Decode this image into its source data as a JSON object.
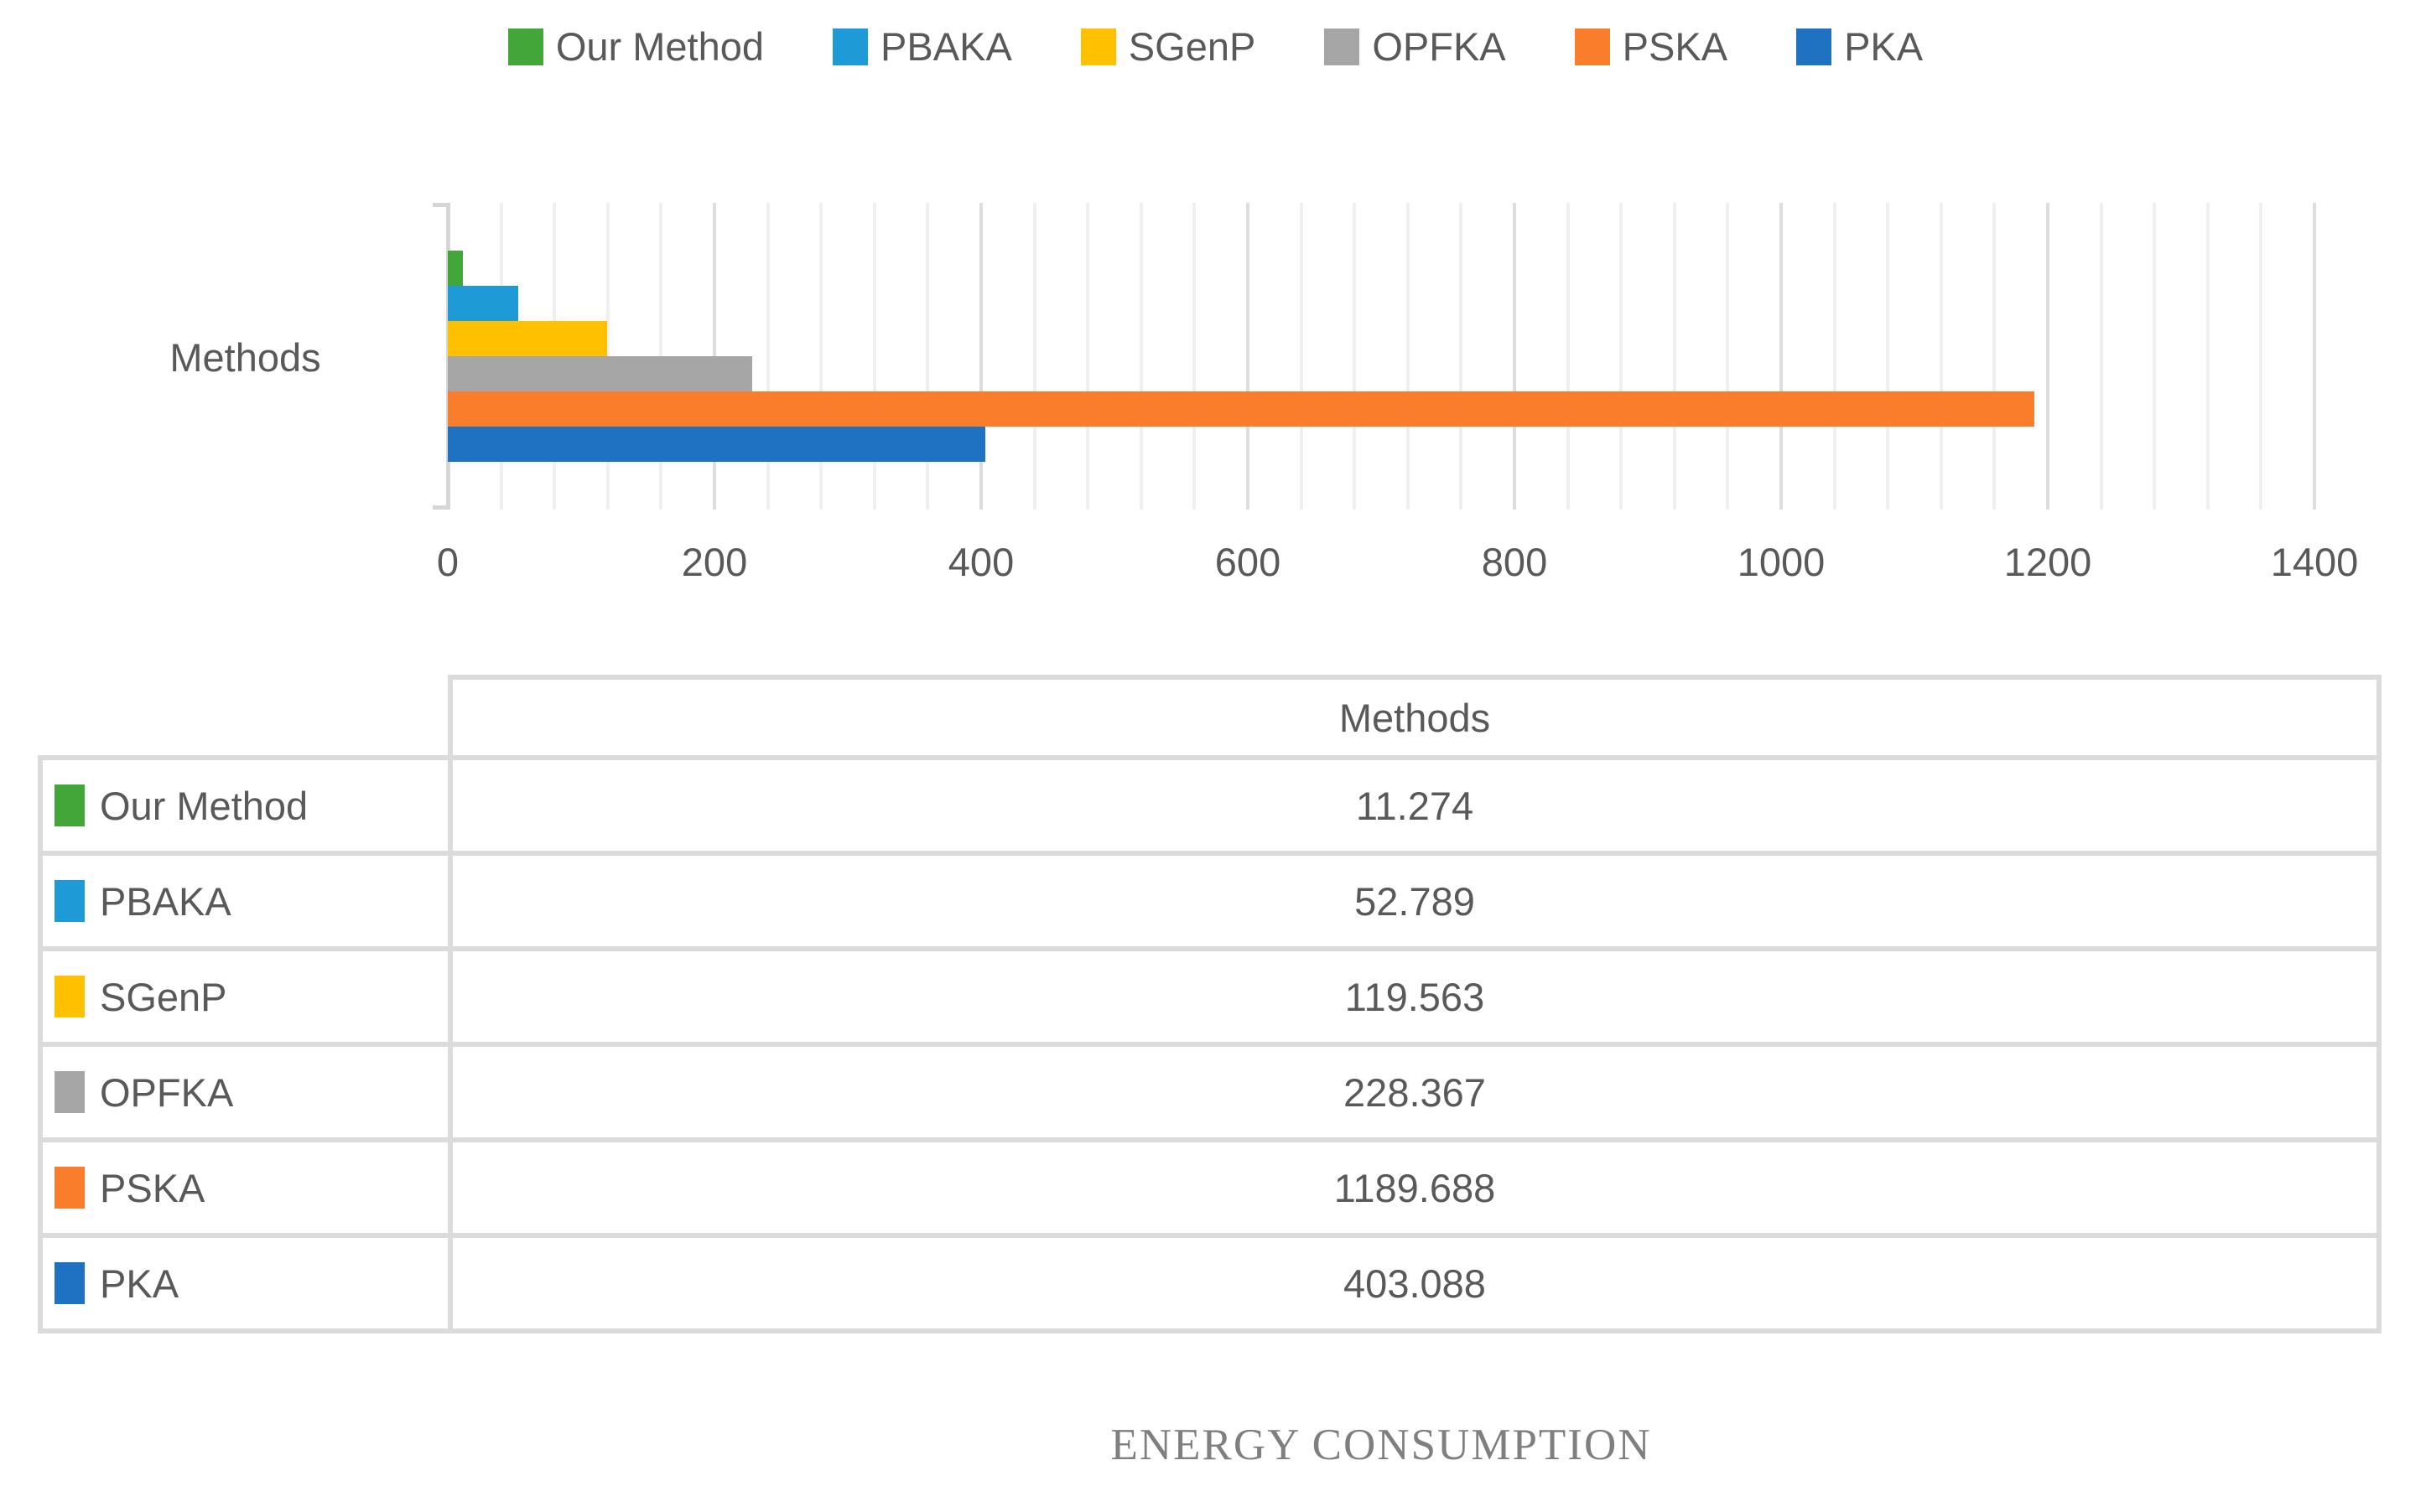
{
  "footer_title": "ENERGY CONSUMPTION",
  "chart_data": {
    "type": "bar",
    "orientation": "horizontal",
    "title": "ENERGY CONSUMPTION",
    "category_axis_label": "Methods",
    "categories": [
      "Methods"
    ],
    "series": [
      {
        "name": "Our Method",
        "value": 11.274,
        "color": "#43a639"
      },
      {
        "name": "PBAKA",
        "value": 52.789,
        "color": "#1e9ad6"
      },
      {
        "name": "SGenP",
        "value": 119.563,
        "color": "#ffc000"
      },
      {
        "name": "OPFKA",
        "value": 228.367,
        "color": "#a6a6a6"
      },
      {
        "name": "PSKA",
        "value": 1189.688,
        "color": "#f97d2b"
      },
      {
        "name": "PKA",
        "value": 403.088,
        "color": "#1f72c2"
      }
    ],
    "xlim": [
      0,
      1400
    ],
    "x_major_ticks": [
      0,
      200,
      400,
      600,
      800,
      1000,
      1200,
      1400
    ],
    "x_minor_unit": 40,
    "grid": "vertical major and minor gridlines",
    "legend_position": "top"
  },
  "table": {
    "header": "Methods",
    "rows": [
      {
        "label": "Our Method",
        "value": "11.274"
      },
      {
        "label": "PBAKA",
        "value": "52.789"
      },
      {
        "label": "SGenP",
        "value": "119.563"
      },
      {
        "label": "OPFKA",
        "value": "228.367"
      },
      {
        "label": "PSKA",
        "value": "1189.688"
      },
      {
        "label": "PKA",
        "value": "403.088"
      }
    ]
  }
}
